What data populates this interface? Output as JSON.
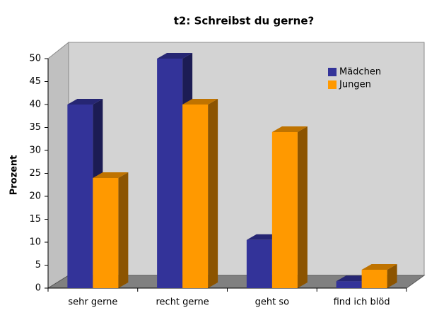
{
  "chart_data": {
    "type": "bar3d",
    "title": "t2: Schreibst du gerne?",
    "y_label": "Prozent",
    "categories": [
      "sehr gerne",
      "recht gerne",
      "geht so",
      "find ich blöd"
    ],
    "series": [
      {
        "name": "Mädchen",
        "color": "#333399",
        "values": [
          40,
          50,
          10.5,
          1.5
        ]
      },
      {
        "name": "Jungen",
        "color": "#ff9900",
        "values": [
          24,
          40,
          34,
          4
        ]
      }
    ],
    "ylim": [
      0,
      50
    ],
    "yticks": [
      0,
      5,
      10,
      15,
      20,
      25,
      30,
      35,
      40,
      45,
      50
    ],
    "grid": false,
    "legend": "upper right"
  }
}
